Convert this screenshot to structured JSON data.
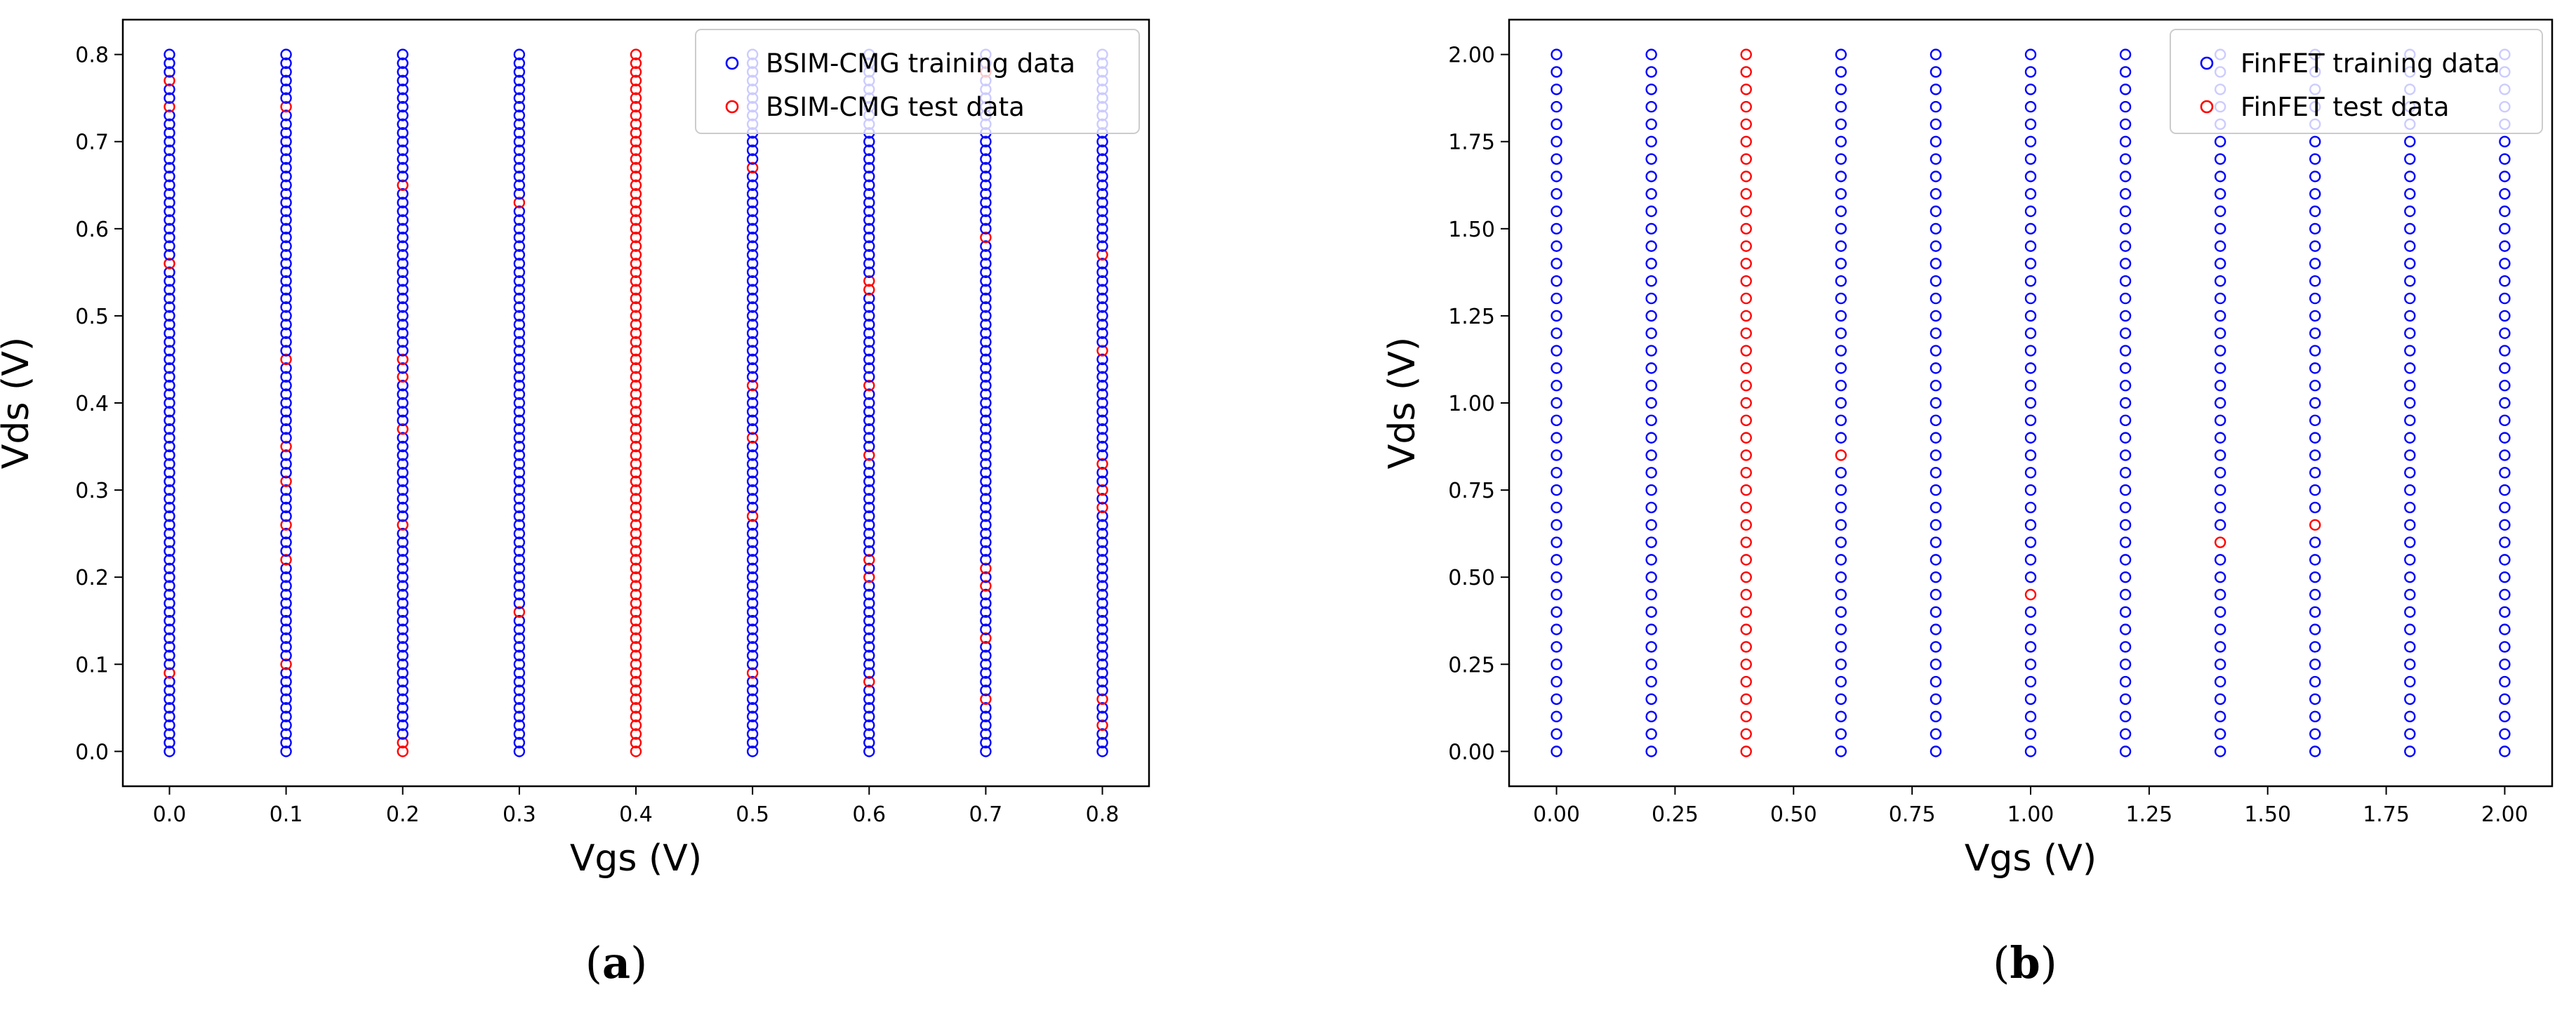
{
  "figure": {
    "caption_a": {
      "open": "(",
      "letter": "a",
      "close": ")"
    },
    "caption_b": {
      "open": "(",
      "letter": "b",
      "close": ")"
    }
  },
  "chart_data": [
    {
      "id": "a",
      "type": "scatter",
      "xlabel": "Vgs (V)",
      "ylabel": "Vds (V)",
      "xlim": [
        -0.04,
        0.84
      ],
      "ylim": [
        -0.04,
        0.84
      ],
      "xticks": [
        0.0,
        0.1,
        0.2,
        0.3,
        0.4,
        0.5,
        0.6,
        0.7,
        0.8
      ],
      "yticks": [
        0.0,
        0.1,
        0.2,
        0.3,
        0.4,
        0.5,
        0.6,
        0.7,
        0.8
      ],
      "tick_decimals": 1,
      "marker": "hollow-circle",
      "vgs_columns": [
        0.0,
        0.1,
        0.2,
        0.3,
        0.4,
        0.5,
        0.6,
        0.7,
        0.8
      ],
      "vds_start": 0.0,
      "vds_step": 0.01,
      "vds_count": 81,
      "series": [
        {
          "name": "BSIM-CMG training data",
          "color": "#0000ff"
        },
        {
          "name": "BSIM-CMG test data",
          "color": "#ff0000"
        }
      ],
      "test_points": [
        {
          "vgs": 0.0,
          "vds": [
            0.09,
            0.56,
            0.74,
            0.77
          ]
        },
        {
          "vgs": 0.1,
          "vds": [
            0.1,
            0.22,
            0.26,
            0.31,
            0.35,
            0.45,
            0.74
          ]
        },
        {
          "vgs": 0.2,
          "vds": [
            0.0,
            0.01,
            0.26,
            0.37,
            0.43,
            0.45,
            0.65
          ]
        },
        {
          "vgs": 0.3,
          "vds": [
            0.16,
            0.63
          ]
        },
        {
          "vgs": 0.4,
          "vds": "all"
        },
        {
          "vgs": 0.5,
          "vds": [
            0.09,
            0.27,
            0.36,
            0.42,
            0.67
          ]
        },
        {
          "vgs": 0.6,
          "vds": [
            0.08,
            0.2,
            0.22,
            0.34,
            0.42,
            0.53,
            0.54
          ]
        },
        {
          "vgs": 0.7,
          "vds": [
            0.06,
            0.13,
            0.19,
            0.21,
            0.59,
            0.78
          ]
        },
        {
          "vgs": 0.8,
          "vds": [
            0.03,
            0.06,
            0.28,
            0.3,
            0.33,
            0.46,
            0.57
          ]
        }
      ],
      "legend": {
        "location": "upper right"
      }
    },
    {
      "id": "b",
      "type": "scatter",
      "xlabel": "Vgs (V)",
      "ylabel": "Vds (V)",
      "xlim": [
        -0.1,
        2.1
      ],
      "ylim": [
        -0.1,
        2.1
      ],
      "xticks": [
        0.0,
        0.25,
        0.5,
        0.75,
        1.0,
        1.25,
        1.5,
        1.75,
        2.0
      ],
      "yticks": [
        0.0,
        0.25,
        0.5,
        0.75,
        1.0,
        1.25,
        1.5,
        1.75,
        2.0
      ],
      "tick_decimals": 2,
      "marker": "hollow-circle",
      "vgs_columns": [
        0.0,
        0.2,
        0.4,
        0.6,
        0.8,
        1.0,
        1.2,
        1.4,
        1.6,
        1.8,
        2.0
      ],
      "vds_start": 0.0,
      "vds_step": 0.05,
      "vds_count": 41,
      "series": [
        {
          "name": "FinFET training data",
          "color": "#0000ff"
        },
        {
          "name": "FinFET test data",
          "color": "#ff0000"
        }
      ],
      "test_points": [
        {
          "vgs": 0.4,
          "vds": "all"
        },
        {
          "vgs": 0.6,
          "vds": [
            0.85
          ]
        },
        {
          "vgs": 1.0,
          "vds": [
            0.45
          ]
        },
        {
          "vgs": 1.4,
          "vds": [
            0.6
          ]
        },
        {
          "vgs": 1.6,
          "vds": [
            0.65
          ]
        }
      ],
      "legend": {
        "location": "upper right"
      }
    }
  ]
}
